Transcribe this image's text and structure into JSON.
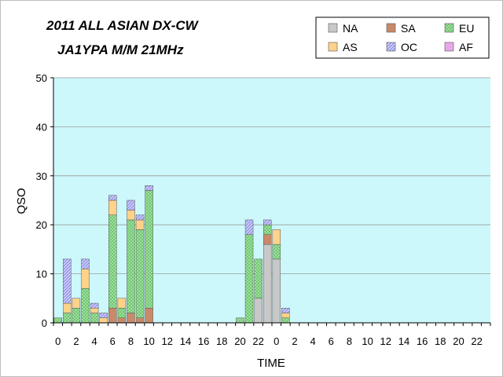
{
  "chart_data": {
    "type": "bar",
    "stacked": true,
    "title_lines": [
      "2011 ALL ASIAN DX-CW",
      "JA1YPA  M/M  21MHz"
    ],
    "xlabel": "TIME",
    "ylabel": "QSO",
    "ylim": [
      0,
      50
    ],
    "yticks": [
      "0",
      "10",
      "20",
      "30",
      "40",
      "50"
    ],
    "grid": true,
    "plot_background": "#ccf8fb",
    "legend_position": "top-right",
    "categories": [
      "0",
      "1",
      "2",
      "3",
      "4",
      "5",
      "6",
      "7",
      "8",
      "9",
      "10",
      "11",
      "12",
      "13",
      "14",
      "15",
      "16",
      "17",
      "18",
      "19",
      "20",
      "21",
      "22",
      "23",
      "0",
      "1",
      "2",
      "3",
      "4",
      "5",
      "6",
      "7",
      "8",
      "9",
      "10",
      "11",
      "12",
      "13",
      "14",
      "15",
      "16",
      "17",
      "18",
      "19",
      "20",
      "21",
      "22",
      "23"
    ],
    "x_tick_labels": [
      "0",
      "2",
      "4",
      "6",
      "8",
      "10",
      "12",
      "14",
      "16",
      "18",
      "20",
      "22",
      "0",
      "2",
      "4",
      "6",
      "8",
      "10",
      "12",
      "14",
      "16",
      "18",
      "20",
      "22"
    ],
    "series": [
      {
        "name": "NA",
        "color": "#c8c8c8",
        "pattern": "solid",
        "values": [
          0,
          0,
          0,
          0,
          0,
          0,
          0,
          0,
          0,
          0,
          0,
          0,
          0,
          0,
          0,
          0,
          0,
          0,
          0,
          0,
          0,
          0,
          5,
          16,
          13,
          0,
          0,
          0,
          0,
          0,
          0,
          0,
          0,
          0,
          0,
          0,
          0,
          0,
          0,
          0,
          0,
          0,
          0,
          0,
          0,
          0,
          0,
          0
        ]
      },
      {
        "name": "SA",
        "color": "#c98a6a",
        "pattern": "solid",
        "values": [
          0,
          0,
          0,
          0,
          0,
          0,
          3,
          1,
          2,
          1,
          3,
          0,
          0,
          0,
          0,
          0,
          0,
          0,
          0,
          0,
          0,
          0,
          0,
          2,
          0,
          0,
          0,
          0,
          0,
          0,
          0,
          0,
          0,
          0,
          0,
          0,
          0,
          0,
          0,
          0,
          0,
          0,
          0,
          0,
          0,
          0,
          0,
          0
        ]
      },
      {
        "name": "EU",
        "color": "#9ee09e",
        "pattern": "checker",
        "values": [
          1,
          2,
          3,
          7,
          2,
          0,
          19,
          2,
          19,
          18,
          24,
          0,
          0,
          0,
          0,
          0,
          0,
          0,
          0,
          0,
          1,
          18,
          8,
          2,
          3,
          1,
          0,
          0,
          0,
          0,
          0,
          0,
          0,
          0,
          0,
          0,
          0,
          0,
          0,
          0,
          0,
          0,
          0,
          0,
          0,
          0,
          0,
          0
        ]
      },
      {
        "name": "AS",
        "color": "#ffd28a",
        "pattern": "solid",
        "values": [
          0,
          2,
          2,
          4,
          1,
          1,
          3,
          2,
          2,
          2,
          0,
          0,
          0,
          0,
          0,
          0,
          0,
          0,
          0,
          0,
          0,
          0,
          0,
          0,
          3,
          1,
          0,
          0,
          0,
          0,
          0,
          0,
          0,
          0,
          0,
          0,
          0,
          0,
          0,
          0,
          0,
          0,
          0,
          0,
          0,
          0,
          0,
          0
        ]
      },
      {
        "name": "OC",
        "color": "#8e8ee8",
        "pattern": "hatch",
        "values": [
          0,
          9,
          0,
          2,
          1,
          1,
          1,
          0,
          2,
          1,
          1,
          0,
          0,
          0,
          0,
          0,
          0,
          0,
          0,
          0,
          0,
          3,
          0,
          1,
          0,
          1,
          0,
          0,
          0,
          0,
          0,
          0,
          0,
          0,
          0,
          0,
          0,
          0,
          0,
          0,
          0,
          0,
          0,
          0,
          0,
          0,
          0,
          0
        ]
      },
      {
        "name": "AF",
        "color": "#e8a8e8",
        "pattern": "solid",
        "values": [
          0,
          0,
          0,
          0,
          0,
          0,
          0,
          0,
          0,
          0,
          0,
          0,
          0,
          0,
          0,
          0,
          0,
          0,
          0,
          0,
          0,
          0,
          0,
          0,
          0,
          0,
          0,
          0,
          0,
          0,
          0,
          0,
          0,
          0,
          0,
          0,
          0,
          0,
          0,
          0,
          0,
          0,
          0,
          0,
          0,
          0,
          0,
          0
        ]
      }
    ]
  }
}
